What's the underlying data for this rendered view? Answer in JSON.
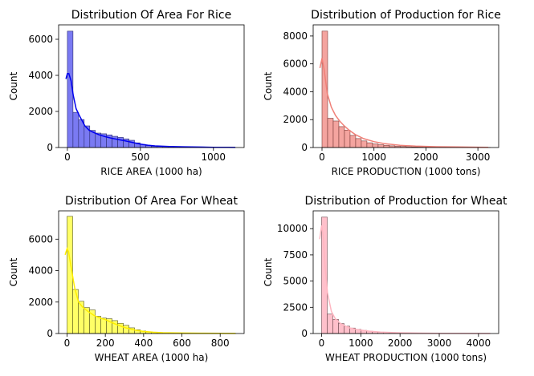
{
  "chart_data": [
    {
      "type": "bar",
      "title": "Distribution Of Area For Rice",
      "xlabel": "RICE AREA (1000 ha)",
      "ylabel": "Count",
      "xlim": [
        -60,
        1210
      ],
      "ylim": [
        0,
        6800
      ],
      "xticks": [
        "0",
        "500",
        "1000"
      ],
      "xtick_values": [
        0,
        500,
        1000
      ],
      "yticks": [
        "0",
        "2000",
        "4000",
        "6000"
      ],
      "ytick_values": [
        0,
        2000,
        4000,
        6000
      ],
      "bin_start": 0,
      "bin_width": 38.3,
      "counts": [
        6450,
        1950,
        1550,
        1200,
        950,
        800,
        760,
        700,
        620,
        560,
        480,
        400,
        260,
        170,
        110,
        70,
        60,
        55,
        50,
        40,
        35,
        30,
        25,
        20,
        15,
        12,
        10,
        8,
        6,
        5
      ],
      "kde_x": [
        -10,
        0,
        10,
        25,
        40,
        60,
        80,
        100,
        120,
        150,
        180,
        220,
        260,
        300,
        350,
        400,
        450,
        500,
        550,
        600,
        700,
        800,
        900,
        1000,
        1100,
        1150
      ],
      "kde_y": [
        3800,
        4100,
        4100,
        3700,
        2900,
        2150,
        1800,
        1500,
        1200,
        950,
        830,
        700,
        600,
        520,
        440,
        360,
        270,
        190,
        130,
        90,
        60,
        40,
        25,
        15,
        8,
        5
      ],
      "colors": {
        "fill": "#7a7af2",
        "edge": "#2b2b6e",
        "line": "#0000ee"
      }
    },
    {
      "type": "bar",
      "title": "Distribution of Production for Rice",
      "xlabel": "RICE PRODUCTION (1000 tons)",
      "ylabel": "Count",
      "xlim": [
        -170,
        3400
      ],
      "ylim": [
        0,
        8800
      ],
      "xticks": [
        "0",
        "1000",
        "2000",
        "3000"
      ],
      "xtick_values": [
        0,
        1000,
        2000,
        3000
      ],
      "yticks": [
        "0",
        "2000",
        "4000",
        "6000",
        "8000"
      ],
      "ytick_values": [
        0,
        2000,
        4000,
        6000,
        8000
      ],
      "bin_start": 0,
      "bin_width": 108,
      "counts": [
        8350,
        2100,
        1900,
        1500,
        1250,
        870,
        640,
        470,
        340,
        260,
        200,
        160,
        120,
        90,
        70,
        55,
        45,
        38,
        30,
        25,
        20,
        17,
        14,
        12,
        10,
        9,
        8,
        7,
        6,
        5
      ],
      "kde_x": [
        -40,
        0,
        40,
        100,
        180,
        260,
        340,
        430,
        520,
        640,
        800,
        1000,
        1200,
        1500,
        1800,
        2200,
        2600,
        3000,
        3200
      ],
      "kde_y": [
        5700,
        6400,
        5600,
        3900,
        2900,
        2300,
        1900,
        1550,
        1250,
        930,
        640,
        420,
        280,
        160,
        100,
        60,
        40,
        25,
        20
      ],
      "colors": {
        "fill": "#f4a49f",
        "edge": "#7a3b38",
        "line": "#f08078"
      }
    },
    {
      "type": "bar",
      "title": "Distribution Of Area For Wheat",
      "xlabel": "WHEAT AREA (1000 ha)",
      "ylabel": "Count",
      "xlim": [
        -44,
        925
      ],
      "ylim": [
        0,
        7800
      ],
      "xticks": [
        "0",
        "200",
        "400",
        "600",
        "800"
      ],
      "xtick_values": [
        0,
        200,
        400,
        600,
        800
      ],
      "yticks": [
        "0",
        "2000",
        "4000",
        "6000"
      ],
      "ytick_values": [
        0,
        2000,
        4000,
        6000
      ],
      "bin_start": 0,
      "bin_width": 29.4,
      "counts": [
        7450,
        2800,
        2050,
        1650,
        1500,
        1100,
        980,
        940,
        820,
        650,
        520,
        360,
        240,
        160,
        100,
        70,
        50,
        40,
        30,
        25,
        20,
        15,
        12,
        10,
        8,
        6,
        5,
        4,
        3,
        2
      ],
      "kde_x": [
        -10,
        0,
        8,
        20,
        40,
        60,
        80,
        110,
        140,
        170,
        200,
        230,
        260,
        300,
        350,
        400,
        450,
        500,
        600,
        700,
        800,
        880
      ],
      "kde_y": [
        5000,
        5400,
        5200,
        4300,
        2900,
        2000,
        1700,
        1400,
        1150,
        1000,
        880,
        720,
        560,
        380,
        230,
        130,
        80,
        50,
        30,
        20,
        10,
        5
      ],
      "colors": {
        "fill": "#ffff66",
        "edge": "#5a5a20",
        "line": "#ffee00"
      }
    },
    {
      "type": "bar",
      "title": "Distribution of Production for Wheat",
      "xlabel": "WHEAT PRODUCTION (1000 tons)",
      "ylabel": "Count",
      "xlim": [
        -215,
        4515
      ],
      "ylim": [
        0,
        11700
      ],
      "xticks": [
        "0",
        "1000",
        "2000",
        "3000",
        "4000"
      ],
      "xtick_values": [
        0,
        1000,
        2000,
        3000,
        4000
      ],
      "yticks": [
        "0",
        "2500",
        "5000",
        "7500",
        "10000"
      ],
      "ytick_values": [
        0,
        2500,
        5000,
        7500,
        10000
      ],
      "bin_start": 0,
      "bin_width": 143.3,
      "counts": [
        11100,
        1850,
        1350,
        950,
        700,
        520,
        400,
        300,
        220,
        170,
        130,
        100,
        80,
        60,
        45,
        35,
        28,
        22,
        18,
        15,
        12,
        10,
        8,
        7,
        6,
        5,
        4,
        3,
        2,
        2
      ],
      "kde_x": [
        -50,
        0,
        40,
        90,
        150,
        250,
        350,
        500,
        700,
        900,
        1200,
        1500,
        2000,
        2500,
        3000,
        3500,
        4000,
        4300
      ],
      "kde_y": [
        9000,
        10300,
        9300,
        6300,
        3900,
        2100,
        1400,
        900,
        550,
        380,
        230,
        140,
        70,
        40,
        25,
        15,
        10,
        5
      ],
      "colors": {
        "fill": "#ffc0cb",
        "edge": "#6e4a50",
        "line": "#ffb6c1"
      }
    }
  ]
}
